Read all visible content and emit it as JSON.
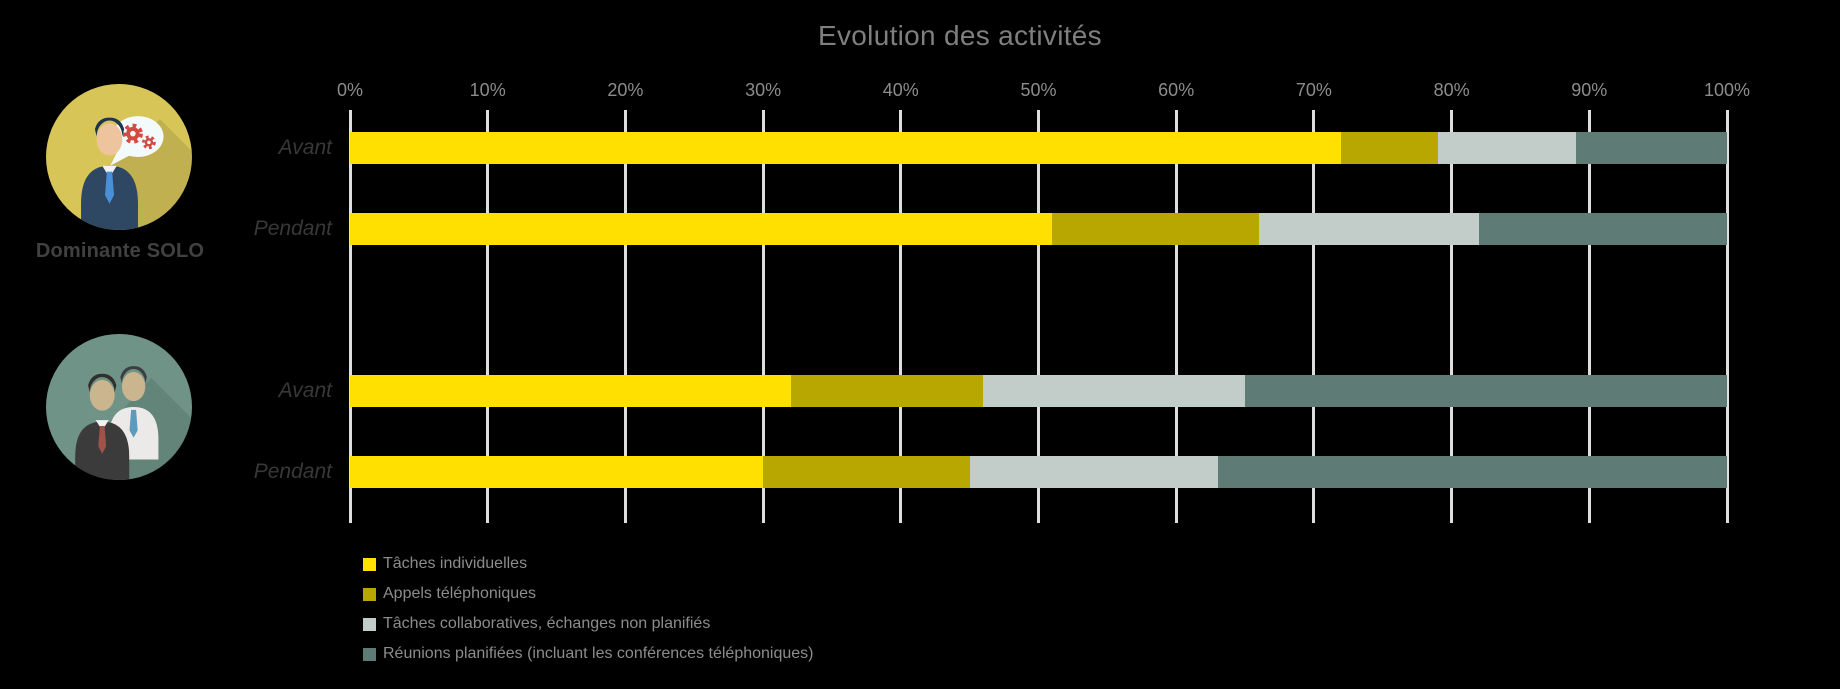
{
  "title": "Evolution des activités",
  "colors": {
    "background": "#000000",
    "title_text": "#7f7f7f",
    "tick_text": "#8c8c8c",
    "category_text": "#383838",
    "group_label_text": "#414141",
    "legend_text": "#8c8c8c",
    "gridline": "#dedede",
    "icon1_circle": "#d7c558",
    "icon2_circle": "#6f9487"
  },
  "chart_data": {
    "type": "bar",
    "subtype": "horizontal-stacked",
    "title": "Evolution des activités",
    "xlim": [
      0,
      100
    ],
    "x_tick_labels": [
      "0%",
      "10%",
      "20%",
      "30%",
      "40%",
      "50%",
      "60%",
      "70%",
      "80%",
      "90%",
      "100%"
    ],
    "grid": true,
    "legend_position": "bottom-left",
    "series": [
      {
        "name": "Tâches individuelles",
        "color": "#ffe000"
      },
      {
        "name": "Appels téléphoniques",
        "color": "#b8a700"
      },
      {
        "name": "Tâches collaboratives, échanges non planifiés",
        "color": "#c2cdc9"
      },
      {
        "name": "Réunions planifiées (incluant les conférences téléphoniques)",
        "color": "#5e7b75"
      }
    ],
    "groups": [
      {
        "label": "Dominante SOLO",
        "icon": "person-speech-bubble-gears-icon",
        "rows": [
          {
            "category": "Avant",
            "values": [
              72,
              7,
              10,
              11
            ]
          },
          {
            "category": "Pendant",
            "values": [
              51,
              15,
              16,
              18
            ]
          }
        ]
      },
      {
        "label": "",
        "icon": "two-people-icon",
        "rows": [
          {
            "category": "Avant",
            "values": [
              32,
              14,
              19,
              35
            ]
          },
          {
            "category": "Pendant",
            "values": [
              30,
              15,
              18,
              37
            ]
          }
        ]
      }
    ]
  }
}
